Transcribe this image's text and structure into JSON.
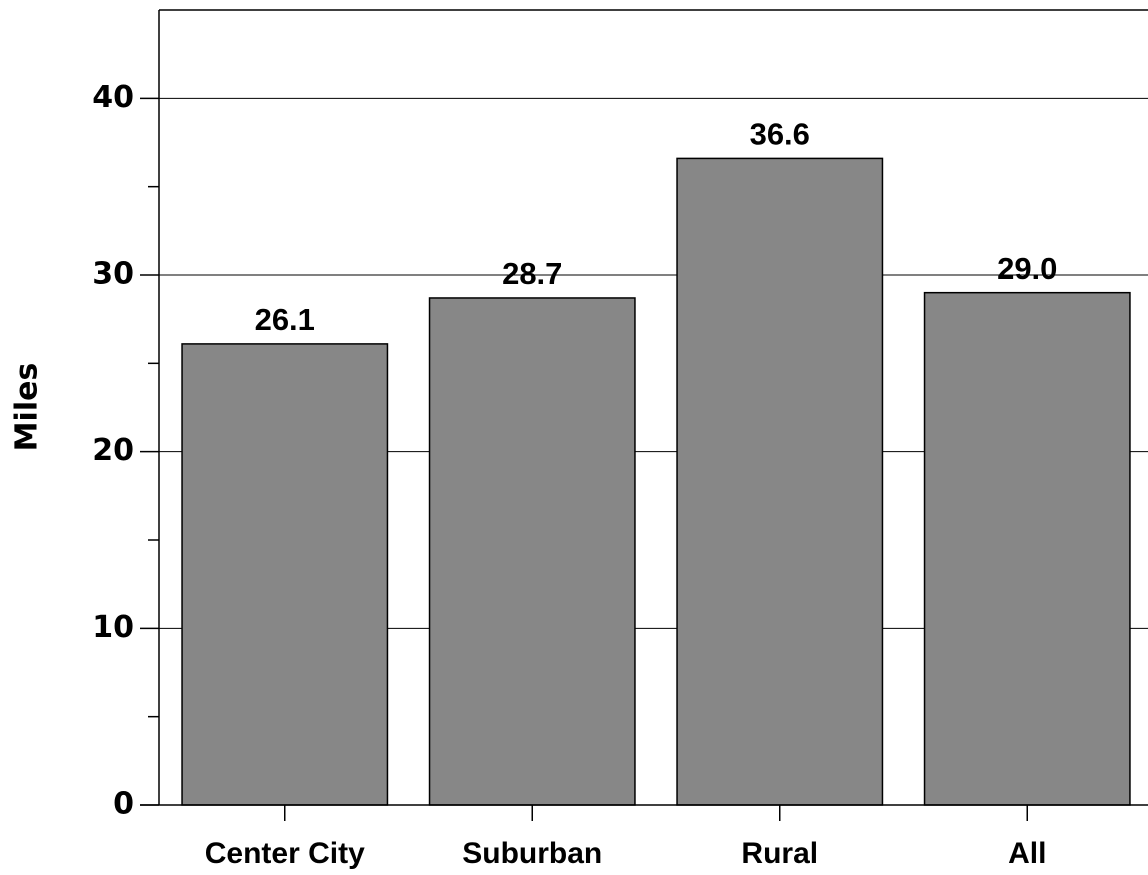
{
  "chart_data": {
    "type": "bar",
    "ylabel": "Miles",
    "categories": [
      "Center City",
      "Suburban",
      "Rural",
      "All"
    ],
    "values": [
      26.1,
      28.7,
      36.6,
      29.0
    ],
    "value_labels": [
      "26.1",
      "28.7",
      "36.6",
      "29.0"
    ],
    "color": "#878787",
    "ylim": [
      0,
      45
    ],
    "yticks": [
      0,
      10,
      20,
      30,
      40
    ],
    "grid": true
  }
}
